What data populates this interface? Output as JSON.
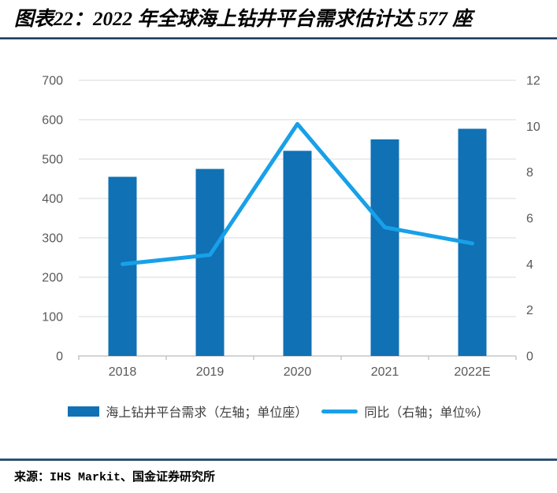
{
  "title": "图表22：2022 年全球海上钻井平台需求估计达 577 座",
  "source": "来源：IHS Markit、国金证券研究所",
  "colors": {
    "bar": "#1071b5",
    "line": "#18a0e8",
    "gridline": "#d9d9d9",
    "axis_line": "#c6c6c6",
    "axis_text": "#595959",
    "divider": "#17375e",
    "divider_edge": "#7ea6bc"
  },
  "legend": {
    "bar_label": "海上钻井平台需求（左轴；单位座）",
    "line_label": "同比（右轴；单位%）"
  },
  "chart_data": {
    "type": "bar",
    "subtype": "bar+line combo, dual axis",
    "title": "2022 年全球海上钻井平台需求估计达 577 座",
    "categories": [
      "2018",
      "2019",
      "2020",
      "2021",
      "2022E"
    ],
    "series": [
      {
        "name": "海上钻井平台需求（左轴；单位座）",
        "type": "bar",
        "axis": "left",
        "values": [
          455,
          475,
          521,
          550,
          577
        ]
      },
      {
        "name": "同比（右轴；单位%）",
        "type": "line",
        "axis": "right",
        "values": [
          4.0,
          4.4,
          10.1,
          5.6,
          4.9
        ]
      }
    ],
    "left_axis": {
      "min": 0,
      "max": 700,
      "step": 100,
      "ticks": [
        "0",
        "100",
        "200",
        "300",
        "400",
        "500",
        "600",
        "700"
      ]
    },
    "right_axis": {
      "min": 0,
      "max": 12,
      "step": 2,
      "ticks": [
        "0",
        "2",
        "4",
        "6",
        "8",
        "10",
        "12"
      ]
    },
    "grid": true,
    "legend_position": "bottom",
    "xlabel": "",
    "ylabel_left": "单位：座",
    "ylabel_right": "单位：%"
  }
}
